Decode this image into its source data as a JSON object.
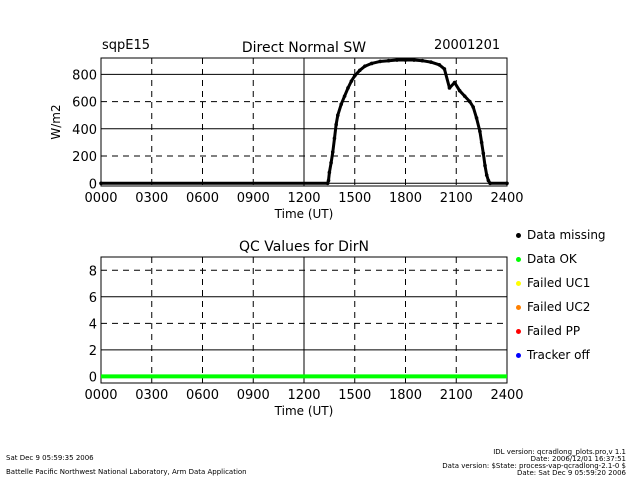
{
  "header": {
    "site": "sqpE15",
    "date": "20001201"
  },
  "chart_data": [
    {
      "type": "scatter",
      "title": "Direct Normal SW",
      "xlabel": "Time (UT)",
      "ylabel": "W/m2",
      "xticks": [
        "0000",
        "0300",
        "0600",
        "0900",
        "1200",
        "1500",
        "1800",
        "2100",
        "2400"
      ],
      "yticks": [
        "0",
        "200",
        "400",
        "600",
        "800"
      ],
      "xlim": [
        0,
        24
      ],
      "ylim": [
        -20,
        920
      ],
      "grid": true,
      "series": [
        {
          "x": [
            0.0,
            13.4,
            13.45,
            13.5,
            13.6,
            13.7,
            13.8,
            13.9,
            14.0,
            14.2,
            14.4,
            14.6,
            14.8,
            15.0,
            15.3,
            15.6,
            16.0,
            16.5,
            17.0,
            17.5,
            18.0,
            18.5,
            19.0,
            19.5,
            20.0,
            20.3,
            20.6,
            20.9,
            21.2,
            21.5,
            21.8,
            22.0,
            22.2,
            22.4,
            22.5,
            22.6,
            22.7,
            22.8,
            22.9,
            23.0,
            24.0
          ],
          "y": [
            0,
            0,
            20,
            80,
            150,
            230,
            330,
            430,
            500,
            580,
            640,
            700,
            750,
            790,
            830,
            860,
            880,
            895,
            900,
            905,
            905,
            905,
            900,
            890,
            870,
            840,
            700,
            740,
            680,
            640,
            600,
            560,
            480,
            380,
            300,
            220,
            130,
            60,
            20,
            0,
            0
          ]
        }
      ]
    },
    {
      "type": "line",
      "title": "QC Values for DirN",
      "xlabel": "Time (UT)",
      "xticks": [
        "0000",
        "0300",
        "0600",
        "0900",
        "1200",
        "1500",
        "1800",
        "2100",
        "2400"
      ],
      "yticks": [
        "0",
        "2",
        "4",
        "6",
        "8"
      ],
      "xlim": [
        0,
        24
      ],
      "ylim": [
        -0.5,
        9
      ],
      "grid": true,
      "series": [
        {
          "x": [
            0,
            24
          ],
          "y": [
            0,
            0
          ],
          "color": "#00ff00"
        }
      ]
    }
  ],
  "legend": [
    {
      "label": "Data missing",
      "color": "#000000"
    },
    {
      "label": "Data OK",
      "color": "#00ff00"
    },
    {
      "label": "Failed UC1",
      "color": "#ffff00"
    },
    {
      "label": "Failed UC2",
      "color": "#ff8000"
    },
    {
      "label": "Failed PP",
      "color": "#ff0000"
    },
    {
      "label": "Tracker off",
      "color": "#0000ff"
    }
  ],
  "footer": {
    "timestamp": "Sat Dec  9 05:59:35 2006",
    "lab": "Battelle Pacific Northwest National Laboratory, Arm Data Application",
    "idl_version": "IDL version: qcradlong_plots.pro,v 1.1",
    "idl_date": "Date: 2006/12/01 16:37:51",
    "data_version": "Data version: $State: process-vap-qcradlong-2.1-0 $",
    "data_date": "Date: Sat Dec  9 05:59:20 2006"
  }
}
